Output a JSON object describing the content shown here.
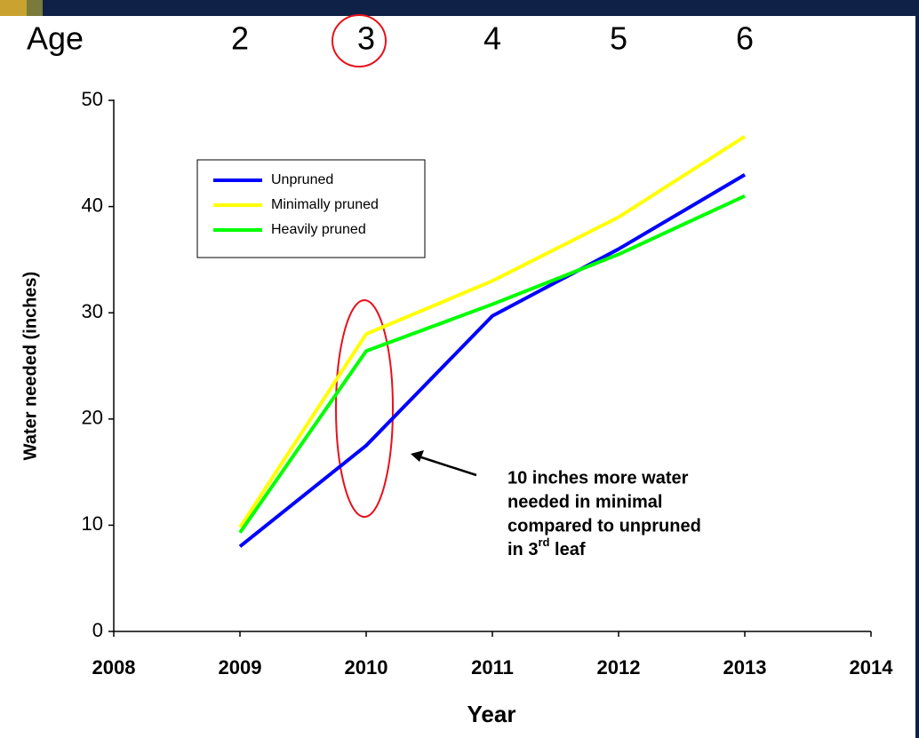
{
  "age_row": {
    "label": "Age",
    "values": [
      2,
      3,
      4,
      5,
      6
    ]
  },
  "chart_data": {
    "type": "line",
    "xlabel": "Year",
    "ylabel": "Water needed (inches)",
    "x": [
      2009,
      2010,
      2011,
      2012,
      2013
    ],
    "xlim": [
      2008,
      2014
    ],
    "xticks": [
      2008,
      2009,
      2010,
      2011,
      2012,
      2013,
      2014
    ],
    "ylim": [
      0,
      50
    ],
    "yticks": [
      0,
      10,
      20,
      30,
      40,
      50
    ],
    "grid": false,
    "legend": "upper left",
    "series": [
      {
        "name": "Unpruned",
        "color": "#0000ff",
        "values": [
          8,
          17.5,
          29.7,
          36,
          43
        ]
      },
      {
        "name": "Minimally pruned",
        "color": "#ffff00",
        "values": [
          9.8,
          28,
          33,
          39,
          46.6
        ]
      },
      {
        "name": "Heavily pruned",
        "color": "#00ff00",
        "values": [
          9.3,
          26.4,
          30.8,
          35.5,
          41
        ]
      }
    ],
    "annotation": {
      "lines": [
        "10 inches more water",
        "needed in minimal",
        "compared to unpruned"
      ],
      "last_line": {
        "before": "in 3",
        "superscript": "rd",
        "after": " leaf"
      }
    }
  }
}
